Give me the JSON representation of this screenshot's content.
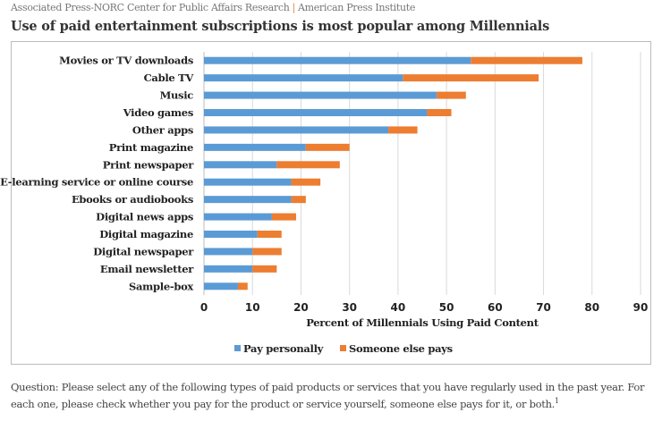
{
  "header": {
    "source_left": "Associated Press-NORC Center for Public Affairs Research",
    "separator": "|",
    "source_right": "American Press Institute"
  },
  "chart_data": {
    "type": "bar",
    "orientation": "horizontal",
    "stacked": true,
    "title": "Use of paid entertainment subscriptions is most popular among Millennials",
    "xlabel": "Percent of Millennials Using Paid Content",
    "ylabel": "",
    "xlim": [
      0,
      90
    ],
    "xticks": [
      0,
      10,
      20,
      30,
      40,
      50,
      60,
      70,
      80,
      90
    ],
    "grid": true,
    "legend": "bottom",
    "categories": [
      "Movies or TV downloads",
      "Cable TV",
      "Music",
      "Video games",
      "Other apps",
      "Print magazine",
      "Print newspaper",
      "E-learning service or online course",
      "Ebooks or audiobooks",
      "Digital news apps",
      "Digital magazine",
      "Digital newspaper",
      "Email newsletter",
      "Sample-box"
    ],
    "series": [
      {
        "name": "Pay personally",
        "color": "#5b9bd5",
        "values": [
          55,
          41,
          48,
          46,
          38,
          21,
          15,
          18,
          18,
          14,
          11,
          10,
          10,
          7
        ]
      },
      {
        "name": "Someone else pays",
        "color": "#ed7d31",
        "values": [
          23,
          28,
          6,
          5,
          6,
          9,
          13,
          6,
          3,
          5,
          5,
          6,
          5,
          2
        ]
      }
    ]
  },
  "footer": {
    "question": "Question: Please select any of the following types of paid products or services that you have regularly used in the past year. For each one, please check whether you pay for the product or service yourself, someone else pays for it, or both.",
    "footnote_mark": "1"
  }
}
